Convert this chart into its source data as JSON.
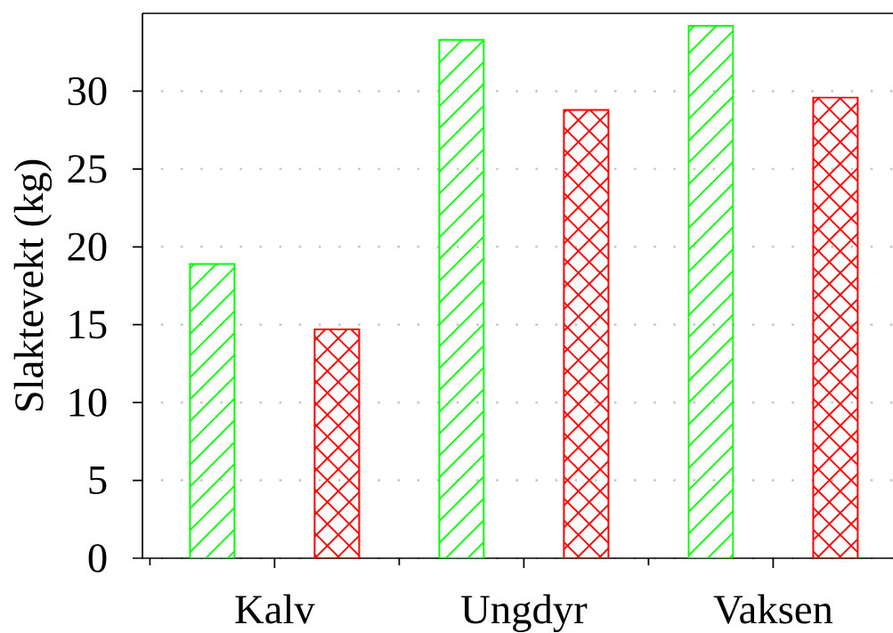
{
  "chart_data": {
    "type": "bar",
    "ylabel": "Slaktevekt (kg)",
    "categories": [
      "Kalv",
      "Ungdyr",
      "Vaksen"
    ],
    "series": [
      {
        "color": "#00ff00",
        "values": [
          18.9,
          33.3,
          34.2
        ]
      },
      {
        "color": "#ff0000",
        "values": [
          14.7,
          28.8,
          29.6
        ]
      }
    ],
    "ylim": [
      0,
      35
    ],
    "yticks": [
      0,
      5,
      10,
      15,
      20,
      25,
      30
    ],
    "grid": "y"
  }
}
